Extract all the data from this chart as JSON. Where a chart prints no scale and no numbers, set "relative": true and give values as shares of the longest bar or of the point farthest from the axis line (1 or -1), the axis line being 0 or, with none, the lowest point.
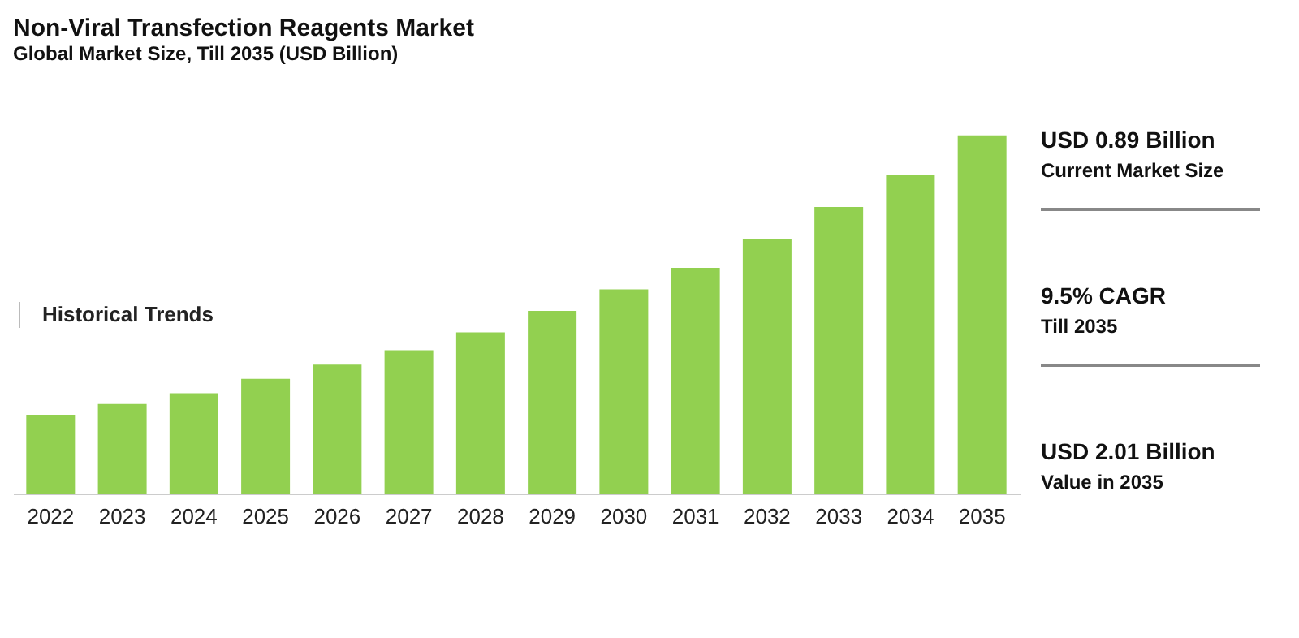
{
  "chart_data": {
    "type": "bar",
    "title": "Non-Viral Transfection Reagents Market",
    "subtitle": "Global Market Size, Till 2035 (USD Billion)",
    "categories": [
      "2022",
      "2023",
      "2024",
      "2025",
      "2026",
      "2027",
      "2028",
      "2029",
      "2030",
      "2031",
      "2032",
      "2033",
      "2034",
      "2035"
    ],
    "values": [
      0.22,
      0.25,
      0.28,
      0.32,
      0.36,
      0.4,
      0.45,
      0.51,
      0.57,
      0.63,
      0.71,
      0.8,
      0.89,
      1
    ],
    "color": "#92d050",
    "relative": true,
    "grid": false,
    "annotations": [
      "Historical Trends",
      "USD 0.89 Billion",
      "Current Market Size",
      "9.5% CAGR",
      "Till 2035",
      "USD 2.01 Billion",
      "Value in 2035"
    ]
  }
}
